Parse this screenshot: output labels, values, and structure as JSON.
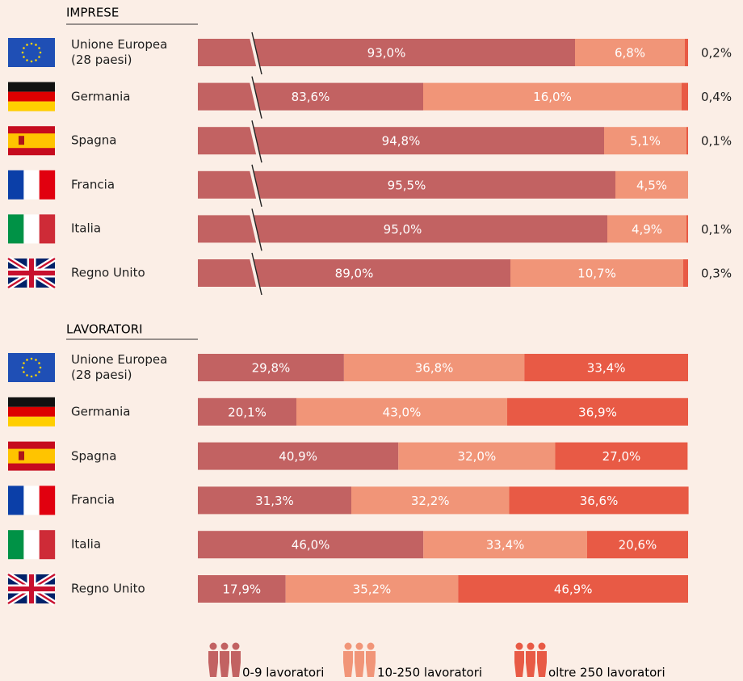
{
  "chart_data": [
    {
      "type": "bar",
      "stacked": true,
      "orientation": "horizontal",
      "axis_break": true,
      "title": "IMPRESE",
      "categories": [
        "Unione Europea\n(28 paesi)",
        "Germania",
        "Spagna",
        "Francia",
        "Italia",
        "Regno Unito"
      ],
      "xlim": [
        69.65,
        100
      ],
      "series": [
        {
          "name": "0-9 lavoratori",
          "color": "#c26262",
          "values": [
            93.0,
            83.6,
            94.8,
            95.5,
            95.0,
            89.0
          ],
          "value_labels": [
            "93,0%",
            "83,6%",
            "94,8%",
            "95,5%",
            "95,0%",
            "89,0%"
          ]
        },
        {
          "name": "10-250 lavoratori",
          "color": "#f19578",
          "values": [
            6.8,
            16.0,
            5.1,
            4.5,
            4.9,
            10.7
          ],
          "value_labels": [
            "6,8%",
            "16,0%",
            "5,1%",
            "4,5%",
            "4,9%",
            "10,7%"
          ]
        },
        {
          "name": "oltre 250 lavoratori",
          "color": "#e85a45",
          "values": [
            0.2,
            0.4,
            0.1,
            null,
            0.1,
            0.3
          ],
          "value_labels": [
            "0,2%",
            "0,4%",
            "0,1%",
            null,
            "0,1%",
            "0,3%"
          ]
        }
      ]
    },
    {
      "type": "bar",
      "stacked": true,
      "orientation": "horizontal",
      "title": "LAVORATORI",
      "categories": [
        "Unione Europea\n(28 paesi)",
        "Germania",
        "Spagna",
        "Francia",
        "Italia",
        "Regno Unito"
      ],
      "xlim": [
        0,
        100
      ],
      "series": [
        {
          "color": "#c26262",
          "values": [
            29.8,
            20.1,
            40.9,
            31.3,
            46.0,
            17.9
          ],
          "value_labels": [
            "29,8%",
            "20,1%",
            "40,9%",
            "31,3%",
            "46,0%",
            "17,9%"
          ]
        },
        {
          "color": "#f19578",
          "values": [
            36.8,
            43.0,
            32.0,
            32.2,
            33.4,
            35.2
          ],
          "value_labels": [
            "36,8%",
            "43,0%",
            "32,0%",
            "32,2%",
            "33,4%",
            "35,2%"
          ]
        },
        {
          "color": "#e85a45",
          "values": [
            33.4,
            36.9,
            27.0,
            36.6,
            20.6,
            46.9
          ],
          "value_labels": [
            "33,4%",
            "36,9%",
            "27,0%",
            "36,6%",
            "20,6%",
            "46,9%"
          ]
        }
      ]
    }
  ]
}
